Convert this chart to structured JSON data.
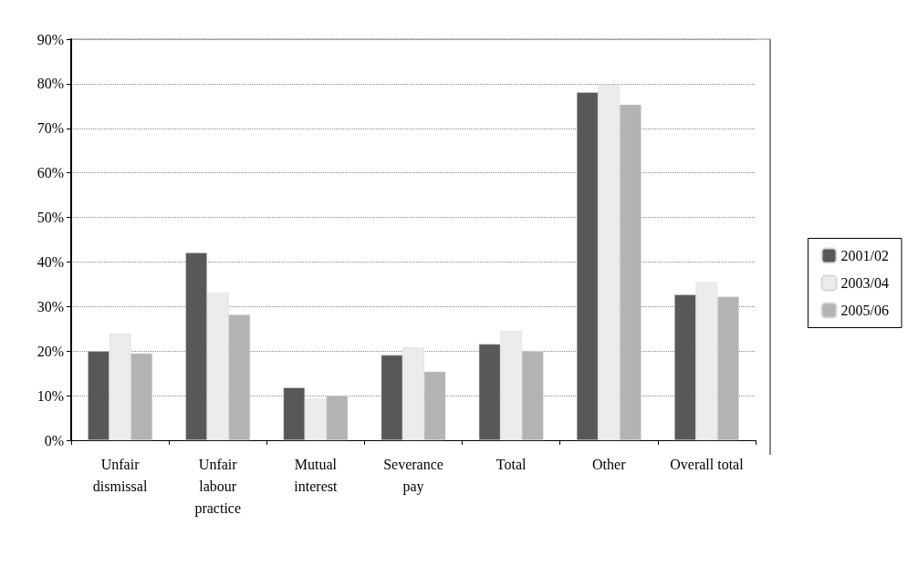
{
  "chart_data": {
    "type": "bar",
    "categories": [
      "Unfair\ndismissal",
      "Unfair\nlabour\npractice",
      "Mutual\ninterest",
      "Severance\npay",
      "Total",
      "Other",
      "Overall total"
    ],
    "series": [
      {
        "name": "2001/02",
        "color": "#58585a",
        "values": [
          20.0,
          42.1,
          11.8,
          19.1,
          21.6,
          78.1,
          32.7
        ]
      },
      {
        "name": "2003/04",
        "color": "#ebeceb",
        "values": [
          24.0,
          33.1,
          9.3,
          20.8,
          24.5,
          79.8,
          35.5
        ]
      },
      {
        "name": "2005/06",
        "color": "#b2b3b4",
        "values": [
          19.5,
          28.2,
          10.0,
          15.4,
          20.0,
          75.3,
          32.2
        ]
      }
    ],
    "ylim": [
      0,
      90
    ],
    "yticks": [
      {
        "value": 0,
        "label": "0%"
      },
      {
        "value": 10,
        "label": "10%"
      },
      {
        "value": 20,
        "label": "20%"
      },
      {
        "value": 30,
        "label": "30%"
      },
      {
        "value": 40,
        "label": "40%"
      },
      {
        "value": 50,
        "label": "50%"
      },
      {
        "value": 60,
        "label": "60%"
      },
      {
        "value": 70,
        "label": "70%"
      },
      {
        "value": 80,
        "label": "80%"
      },
      {
        "value": 90,
        "label": "90%"
      }
    ],
    "grid": "y",
    "legend": "right"
  }
}
